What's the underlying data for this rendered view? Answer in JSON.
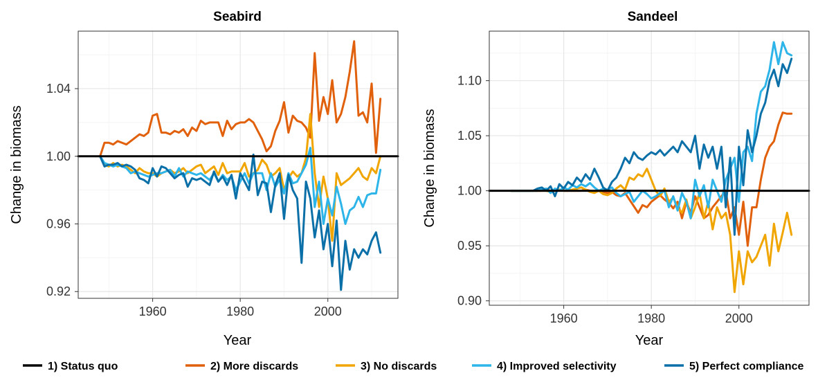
{
  "colors": {
    "status_quo": "#000000",
    "more_discards": "#E1600C",
    "no_discards": "#F0A500",
    "improved_selectivity": "#2DB4E8",
    "perfect_compliance": "#0B6FA8"
  },
  "legend": {
    "position": "bottom",
    "items": [
      {
        "label": "1) Status quo",
        "color": "#000000"
      },
      {
        "label": "2) More discards",
        "color": "#E1600C"
      },
      {
        "label": "3) No discards",
        "color": "#F0A500"
      },
      {
        "label": "4) Improved selectivity",
        "color": "#2DB4E8"
      },
      {
        "label": "5) Perfect compliance",
        "color": "#0B6FA8"
      }
    ]
  },
  "chart_data": [
    {
      "type": "line",
      "title": "Seabird",
      "xlabel": "Year",
      "ylabel": "Change in biomass",
      "xlim": [
        1943,
        2016
      ],
      "ylim": [
        0.916,
        1.074
      ],
      "xticks": [
        1960,
        1980,
        2000
      ],
      "xtick_labels": [
        "1960",
        "1980",
        "2000"
      ],
      "yticks": [
        0.92,
        0.96,
        1.0,
        1.04
      ],
      "ytick_labels": [
        "0.92",
        "0.96",
        "1.00",
        "1.04"
      ],
      "grid": true,
      "x_start": 1948,
      "series": [
        {
          "name": "1) Status quo",
          "color": "#000000",
          "values": [
            1.0,
            1.0
          ]
        },
        {
          "name": "2) More discards",
          "color": "#E1600C",
          "values": [
            1.0,
            1.008,
            1.008,
            1.007,
            1.009,
            1.008,
            1.007,
            1.009,
            1.011,
            1.013,
            1.012,
            1.014,
            1.024,
            1.025,
            1.014,
            1.014,
            1.013,
            1.015,
            1.014,
            1.016,
            1.012,
            1.017,
            1.015,
            1.021,
            1.019,
            1.02,
            1.02,
            1.02,
            1.012,
            1.021,
            1.016,
            1.019,
            1.02,
            1.02,
            1.022,
            1.02,
            1.015,
            1.01,
            1.003,
            1.006,
            1.015,
            1.021,
            1.032,
            1.014,
            1.024,
            1.021,
            1.02,
            1.017,
            1.011,
            1.061,
            1.021,
            1.035,
            1.025,
            1.045,
            1.02,
            1.025,
            1.035,
            1.05,
            1.068,
            1.024,
            1.026,
            1.02,
            1.043,
            1.002,
            1.034
          ]
        },
        {
          "name": "3) No discards",
          "color": "#F0A500",
          "values": [
            1.0,
            0.995,
            0.994,
            0.996,
            0.994,
            0.995,
            0.994,
            0.992,
            0.99,
            0.993,
            0.991,
            0.99,
            0.99,
            0.988,
            0.99,
            0.991,
            0.992,
            0.99,
            0.991,
            0.993,
            0.99,
            0.992,
            0.994,
            0.995,
            0.99,
            0.992,
            0.994,
            0.989,
            0.996,
            0.99,
            0.991,
            0.991,
            0.991,
            0.996,
            0.988,
            0.99,
            0.992,
            0.998,
            0.995,
            0.988,
            0.99,
            0.993,
            0.98,
            0.987,
            0.991,
            0.988,
            0.99,
            0.999,
            1.025,
            0.99,
            0.97,
            0.988,
            0.975,
            0.95,
            0.99,
            0.983,
            0.985,
            0.987,
            0.99,
            0.993,
            0.988,
            0.986,
            0.993,
            0.99,
            1.0
          ]
        },
        {
          "name": "4) Improved selectivity",
          "color": "#2DB4E8",
          "values": [
            1.0,
            0.996,
            0.995,
            0.994,
            0.995,
            0.994,
            0.993,
            0.99,
            0.991,
            0.99,
            0.989,
            0.988,
            0.989,
            0.99,
            0.99,
            0.991,
            0.992,
            0.988,
            0.993,
            0.988,
            0.991,
            0.99,
            0.989,
            0.99,
            0.988,
            0.986,
            0.99,
            0.985,
            0.989,
            0.986,
            0.988,
            0.98,
            0.985,
            0.99,
            0.984,
            0.99,
            0.99,
            0.99,
            0.98,
            0.99,
            0.982,
            0.986,
            0.978,
            0.99,
            0.984,
            0.985,
            0.99,
            0.995,
            1.005,
            0.97,
            0.985,
            0.96,
            0.975,
            0.965,
            0.982,
            0.972,
            0.96,
            0.968,
            0.97,
            0.976,
            0.97,
            0.977,
            0.978,
            0.978,
            0.992
          ]
        },
        {
          "name": "5) Perfect compliance",
          "color": "#0B6FA8",
          "values": [
            1.0,
            0.994,
            0.995,
            0.995,
            0.996,
            0.994,
            0.995,
            0.994,
            0.992,
            0.987,
            0.986,
            0.984,
            0.993,
            0.988,
            0.994,
            0.993,
            0.99,
            0.987,
            0.989,
            0.99,
            0.982,
            0.987,
            0.986,
            0.987,
            0.985,
            0.983,
            0.991,
            0.985,
            0.988,
            0.983,
            0.989,
            0.975,
            0.99,
            0.985,
            0.98,
            1.001,
            0.977,
            0.985,
            0.984,
            0.967,
            0.983,
            0.99,
            0.963,
            0.989,
            0.98,
            0.975,
            0.937,
            0.985,
            0.975,
            0.952,
            0.968,
            0.945,
            0.96,
            0.935,
            0.962,
            0.921,
            0.95,
            0.933,
            0.945,
            0.94,
            0.945,
            0.942,
            0.95,
            0.955,
            0.943
          ]
        }
      ]
    },
    {
      "type": "line",
      "title": "Sandeel",
      "xlabel": "Year",
      "ylabel": "Change in biomass",
      "xlim": [
        1943,
        2016
      ],
      "ylim": [
        0.896,
        1.145
      ],
      "xticks": [
        1960,
        1980,
        2000
      ],
      "xtick_labels": [
        "1960",
        "1980",
        "2000"
      ],
      "yticks": [
        0.9,
        0.95,
        1.0,
        1.05,
        1.1
      ],
      "ytick_labels": [
        "0.90",
        "0.95",
        "1.00",
        "1.05",
        "1.10"
      ],
      "grid": true,
      "x_start": 1948,
      "series": [
        {
          "name": "1) Status quo",
          "color": "#000000",
          "values": [
            1.0,
            1.0
          ]
        },
        {
          "name": "2) More discards",
          "color": "#E1600C",
          "values": [
            1.0,
            1.0,
            1.0,
            1.0,
            1.0,
            1.0,
            1.0,
            1.0,
            1.001,
            1.0,
            1.0,
            1.001,
            1.0,
            1.0,
            1.0,
            1.0,
            1.0,
            1.001,
            1.0,
            0.999,
            1.0,
            0.999,
            0.998,
            0.999,
            0.996,
            0.995,
            0.998,
            0.992,
            0.986,
            0.98,
            0.987,
            0.985,
            0.99,
            0.993,
            0.996,
            0.992,
            0.989,
            0.984,
            0.99,
            0.975,
            0.99,
            0.98,
            0.995,
            0.985,
            0.975,
            0.978,
            0.985,
            0.99,
            0.995,
            1.0,
            0.975,
            0.985,
            0.96,
            0.99,
            0.95,
            0.985,
            0.985,
            1.01,
            1.03,
            1.04,
            1.045,
            1.06,
            1.071,
            1.07,
            1.07
          ]
        },
        {
          "name": "3) No discards",
          "color": "#F0A500",
          "values": [
            1.0,
            1.0,
            1.0,
            1.0,
            1.0,
            1.0,
            1.0,
            1.0,
            1.0,
            0.999,
            1.0,
            1.001,
            1.0,
            1.0,
            1.001,
            1.002,
            1.003,
            1.001,
            0.999,
            0.998,
            1.0,
            0.997,
            0.996,
            0.998,
            1.002,
            1.005,
            1.001,
            1.012,
            1.01,
            1.015,
            1.013,
            1.02,
            1.01,
            1.0,
            0.995,
            1.002,
            0.99,
            0.994,
            0.985,
            0.98,
            0.992,
            0.975,
            0.985,
            0.998,
            0.975,
            0.99,
            0.965,
            0.985,
            0.975,
            0.98,
            0.96,
            0.908,
            0.945,
            0.915,
            0.945,
            0.935,
            0.94,
            0.95,
            0.96,
            0.932,
            0.97,
            0.945,
            0.962,
            0.98,
            0.96
          ]
        },
        {
          "name": "4) Improved selectivity",
          "color": "#2DB4E8",
          "values": [
            1.0,
            1.0,
            1.0,
            1.0,
            1.0,
            1.0,
            1.0,
            1.001,
            1.002,
            0.998,
            1.002,
            1.0,
            1.003,
            1.001,
            1.005,
            1.003,
            1.006,
            1.004,
            1.007,
            1.003,
            1.0,
            1.002,
            1.001,
            1.003,
            0.998,
            0.995,
            0.997,
            0.999,
            0.99,
            0.995,
            1.0,
            0.997,
            0.993,
            0.995,
            0.998,
            1.0,
            0.985,
            0.995,
            0.982,
            0.998,
            0.99,
            0.975,
            1.01,
            0.995,
            1.005,
            0.985,
            1.01,
            1.0,
            0.99,
            1.01,
            1.02,
            1.03,
            0.99,
            1.035,
            1.04,
            1.027,
            1.07,
            1.09,
            1.095,
            1.11,
            1.135,
            1.115,
            1.135,
            1.125,
            1.123
          ]
        },
        {
          "name": "5) Perfect compliance",
          "color": "#0B6FA8",
          "values": [
            1.0,
            1.0,
            1.0,
            1.0,
            1.0,
            1.0,
            1.002,
            1.003,
            1.0,
            1.004,
            0.995,
            1.006,
            1.002,
            1.008,
            1.005,
            1.012,
            1.008,
            1.015,
            1.01,
            1.02,
            1.012,
            1.003,
            1.0,
            1.008,
            1.012,
            1.02,
            1.03,
            1.025,
            1.035,
            1.03,
            1.028,
            1.032,
            1.035,
            1.033,
            1.037,
            1.032,
            1.036,
            1.04,
            1.035,
            1.045,
            1.04,
            1.035,
            1.05,
            1.02,
            1.042,
            1.03,
            1.04,
            1.02,
            1.04,
            0.985,
            1.03,
            0.96,
            1.04,
            1.005,
            1.055,
            1.035,
            1.05,
            1.07,
            1.08,
            1.1,
            1.11,
            1.095,
            1.115,
            1.107,
            1.12
          ]
        }
      ]
    }
  ]
}
